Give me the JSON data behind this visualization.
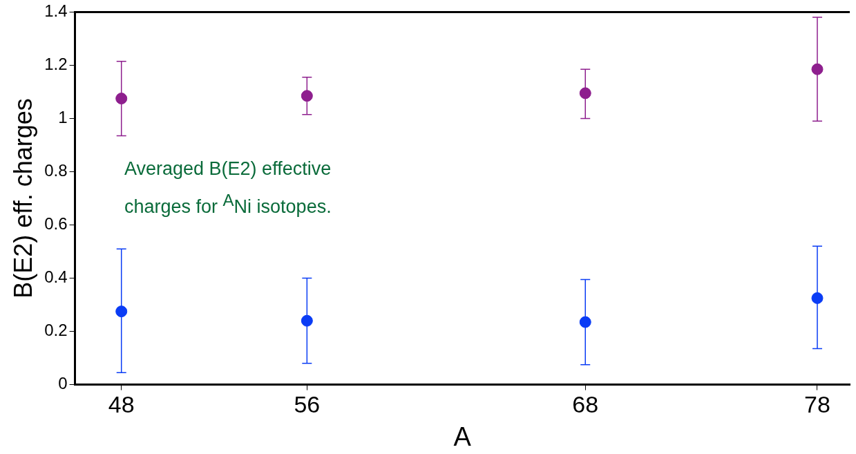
{
  "chart_data": {
    "type": "scatter",
    "xlabel": "A",
    "ylabel": "B(E2) eff. charges",
    "x": [
      48,
      56,
      68,
      78
    ],
    "series": [
      {
        "color": "#8e1f8e",
        "values": [
          1.075,
          1.085,
          1.095,
          1.185
        ],
        "errors": [
          [
            0.935,
            1.215
          ],
          [
            1.015,
            1.155
          ],
          [
            1.0,
            1.185
          ],
          [
            0.99,
            1.38
          ]
        ]
      },
      {
        "color": "#0a3cf5",
        "values": [
          0.275,
          0.24,
          0.235,
          0.325
        ],
        "errors": [
          [
            0.045,
            0.51
          ],
          [
            0.08,
            0.4
          ],
          [
            0.075,
            0.395
          ],
          [
            0.135,
            0.52
          ]
        ]
      }
    ],
    "xlim": [
      46,
      79.4
    ],
    "xticks": [
      48,
      56,
      68,
      78
    ],
    "ylim": [
      0,
      1.4
    ],
    "yticks": [
      0,
      {
        "value": 0.2,
        "label": "0.2"
      },
      {
        "value": 0.4,
        "label": "0.4"
      },
      {
        "value": 0.6,
        "label": "0.6"
      },
      {
        "value": 0.8,
        "label": "0.8"
      },
      1,
      {
        "value": 1.2,
        "label": "1.2"
      },
      {
        "value": 1.4,
        "label": "1.4"
      }
    ],
    "grid": false,
    "legend": false,
    "marker": "circle",
    "annotations": [
      "Averaged B(E2) effective charges for $^{A}$Ni isotopes."
    ]
  }
}
